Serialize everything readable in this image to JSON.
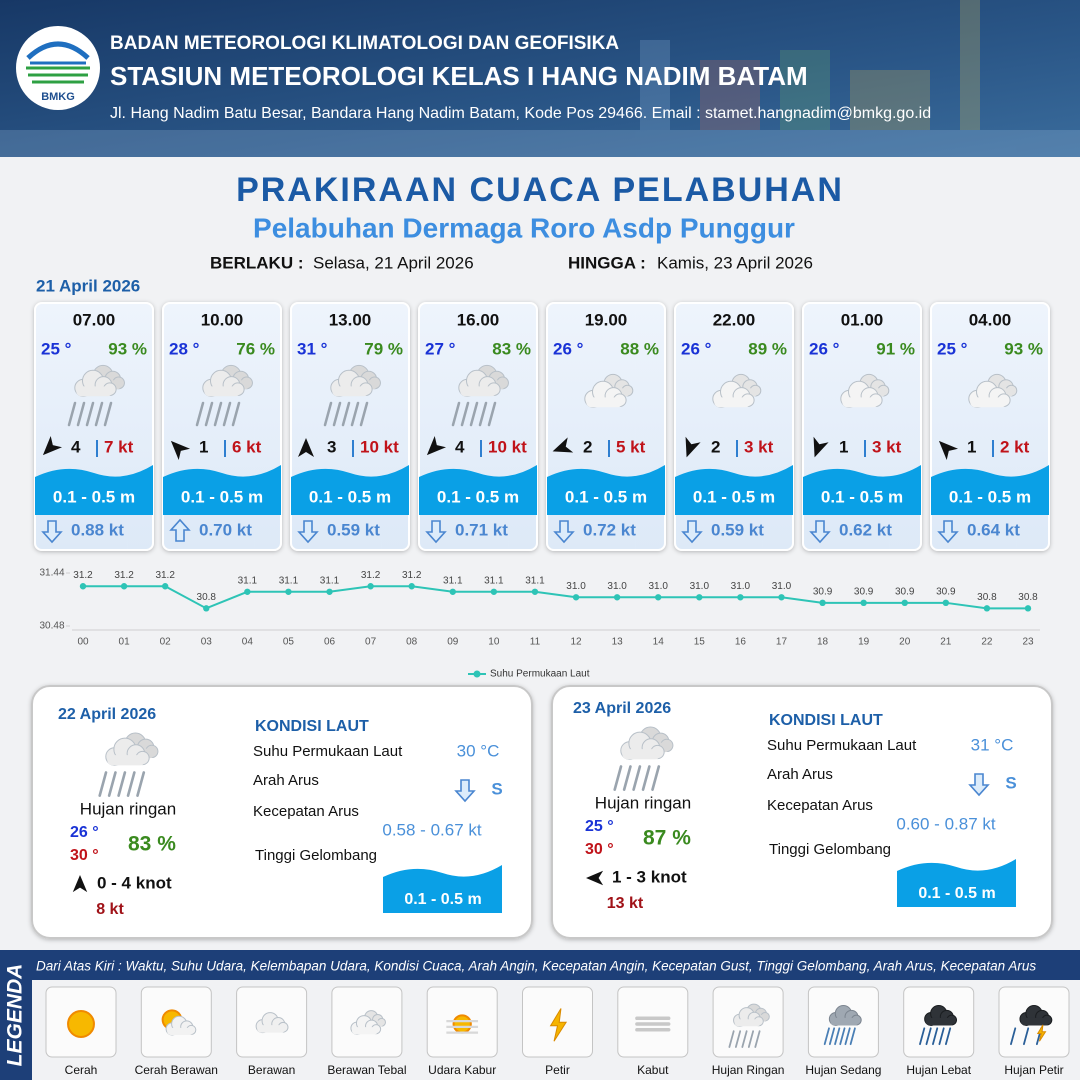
{
  "header": {
    "logo_text": "BMKG",
    "agency": "BADAN METEOROLOGI KLIMATOLOGI DAN GEOFISIKA",
    "station": "STASIUN METEOROLOGI KELAS I HANG NADIM BATAM",
    "address": "Jl. Hang Nadim Batu Besar, Bandara Hang Nadim Batam, Kode Pos 29466. Email : stamet.hangnadim@bmkg.go.id"
  },
  "title": "PRAKIRAAN CUACA PELABUHAN",
  "subtitle": "Pelabuhan Dermaga Roro Asdp Punggur",
  "validity": {
    "from_label": "BERLAKU :",
    "from": "Selasa, 21 April 2026",
    "to_label": "HINGGA :",
    "to": "Kamis, 23 April 2026"
  },
  "today": {
    "date": "21 April 2026",
    "slots": [
      {
        "time": "07.00",
        "temperature": "25 °",
        "humidity": "93 %",
        "wind_speed": 4,
        "gust": "7 kt",
        "wave": "0.1 - 0.5 m",
        "current": "0.88 kt"
      },
      {
        "time": "10.00",
        "temperature": "28 °",
        "humidity": "76 %",
        "wind_speed": 1,
        "gust": "6 kt",
        "wave": "0.1 - 0.5 m",
        "current": "0.70 kt"
      },
      {
        "time": "13.00",
        "temperature": "31 °",
        "humidity": "79 %",
        "wind_speed": 3,
        "gust": "10 kt",
        "wave": "0.1 - 0.5 m",
        "current": "0.59 kt"
      },
      {
        "time": "16.00",
        "temperature": "27 °",
        "humidity": "83 %",
        "wind_speed": 4,
        "gust": "10 kt",
        "wave": "0.1 - 0.5 m",
        "current": "0.71 kt"
      },
      {
        "time": "19.00",
        "temperature": "26 °",
        "humidity": "88 %",
        "wind_speed": 2,
        "gust": "5 kt",
        "wave": "0.1 - 0.5 m",
        "current": "0.72 kt"
      },
      {
        "time": "22.00",
        "temperature": "26 °",
        "humidity": "89 %",
        "wind_speed": 2,
        "gust": "3 kt",
        "wave": "0.1 - 0.5 m",
        "current": "0.59 kt"
      },
      {
        "time": "01.00",
        "temperature": "26 °",
        "humidity": "91 %",
        "wind_speed": 1,
        "gust": "3 kt",
        "wave": "0.1 - 0.5 m",
        "current": "0.62 kt"
      },
      {
        "time": "04.00",
        "temperature": "25 °",
        "humidity": "93 %",
        "wind_speed": 1,
        "gust": "2 kt",
        "wave": "0.1 - 0.5 m",
        "current": "0.64 kt"
      }
    ]
  },
  "chart_data": {
    "type": "line",
    "categories": [
      "00",
      "01",
      "02",
      "03",
      "04",
      "05",
      "06",
      "07",
      "08",
      "09",
      "10",
      "11",
      "12",
      "13",
      "14",
      "15",
      "16",
      "17",
      "18",
      "19",
      "20",
      "21",
      "22",
      "23"
    ],
    "series": [
      {
        "name": "Suhu Permukaan Laut",
        "color": "#2ec4b6",
        "values": [
          31.2,
          31.2,
          31.2,
          30.8,
          31.1,
          31.1,
          31.1,
          31.2,
          31.2,
          31.1,
          31.1,
          31.1,
          31.0,
          31.0,
          31.0,
          31.0,
          31.0,
          31.0,
          30.9,
          30.9,
          30.9,
          30.9,
          30.8,
          30.8
        ],
        "value_labels": [
          "31.2",
          "31.2",
          "31.2",
          "30.8",
          "31.1",
          "31.1",
          "31.1",
          "31.2",
          "31.2",
          "31.1",
          "31.1",
          "31.1",
          "31.0",
          "31.0",
          "31.0",
          "31.0",
          "31.0",
          "31.0",
          "30.9",
          "30.9",
          "30.9",
          "30.9",
          "30.8",
          "30.8"
        ]
      }
    ],
    "ylim": [
      30.48,
      31.44
    ],
    "yticks": [
      30.48,
      31.44
    ]
  },
  "forecast_days": [
    {
      "date": "22 April 2026",
      "condition": "Hujan ringan",
      "temp_min": "26 °",
      "temp_max": "30 °",
      "humidity": "83 %",
      "wind": "0 - 4 knot",
      "gust": "8 kt",
      "sea_title": "KONDISI LAUT",
      "sst_label": "Suhu Permukaan Laut",
      "sst": "30 °C",
      "current_dir_label": "Arah Arus",
      "current_dir": "S",
      "current_speed_label": "Kecepatan Arus",
      "current_speed": "0.58 - 0.67 kt",
      "wave_label": "Tinggi Gelombang",
      "wave": "0.1 - 0.5 m"
    },
    {
      "date": "23 April 2026",
      "condition": "Hujan ringan",
      "temp_min": "25 °",
      "temp_max": "30 °",
      "humidity": "87 %",
      "wind": "1 - 3 knot",
      "gust": "13 kt",
      "sea_title": "KONDISI LAUT",
      "sst_label": "Suhu Permukaan Laut",
      "sst": "31 °C",
      "current_dir_label": "Arah Arus",
      "current_dir": "S",
      "current_speed_label": "Kecepatan Arus",
      "current_speed": "0.60 - 0.87 kt",
      "wave_label": "Tinggi Gelombang",
      "wave": "0.1 - 0.5 m"
    }
  ],
  "legend": {
    "title": "LEGENDA",
    "description": "Dari Atas Kiri : Waktu, Suhu Udara, Kelembapan Udara, Kondisi Cuaca, Arah Angin, Kecepatan Angin, Kecepatan Gust, Tinggi Gelombang, Arah Arus, Kecepatan Arus",
    "items": [
      "Cerah",
      "Cerah Berawan",
      "Berawan",
      "Berawan Tebal",
      "Udara Kabur",
      "Petir",
      "Kabut",
      "Hujan Ringan",
      "Hujan Sedang",
      "Hujan Lebat",
      "Hujan Petir"
    ]
  }
}
